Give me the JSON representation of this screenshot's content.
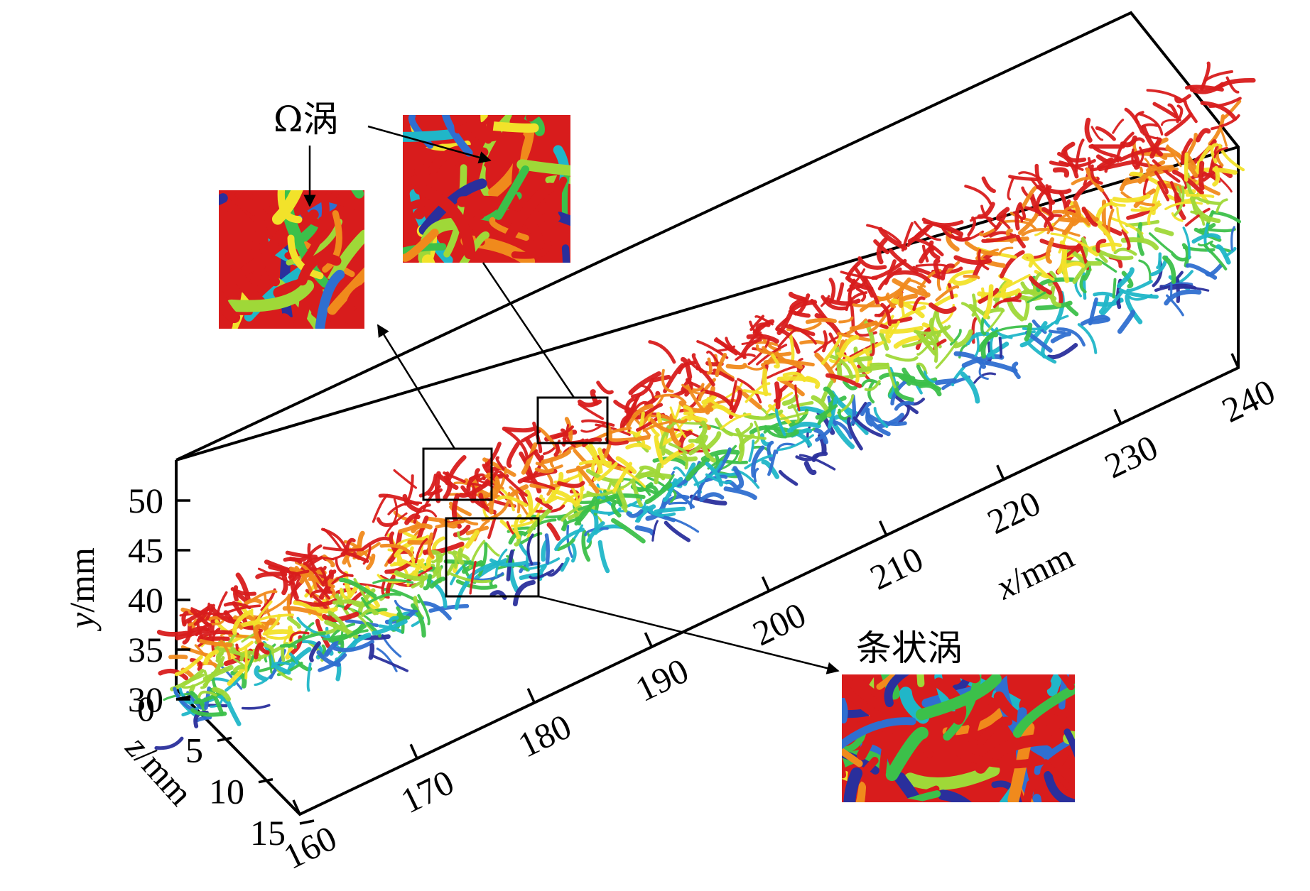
{
  "figure": {
    "axes": {
      "x": {
        "label_var": "x",
        "label_unit": "/mm",
        "ticks": [
          "160",
          "170",
          "180",
          "190",
          "200",
          "210",
          "220",
          "230",
          "240"
        ]
      },
      "y": {
        "label_var": "y",
        "label_unit": "/mm",
        "ticks": [
          "30",
          "35",
          "40",
          "45",
          "50"
        ]
      },
      "z": {
        "label_var": "z",
        "label_unit": "/mm",
        "ticks": [
          "0",
          "5",
          "10",
          "15"
        ]
      }
    },
    "annotations": {
      "omega_vortex": "Ω涡",
      "streak_vortex": "条状涡"
    },
    "colormap": [
      "#2a2f9c",
      "#2f6fd0",
      "#20b6c8",
      "#3cc04a",
      "#9fd838",
      "#f2e22a",
      "#f08a1c",
      "#d81c1c"
    ],
    "insets": [
      {
        "name": "omega-vortex-inset-left"
      },
      {
        "name": "omega-vortex-inset-top"
      },
      {
        "name": "streak-vortex-inset"
      }
    ]
  }
}
